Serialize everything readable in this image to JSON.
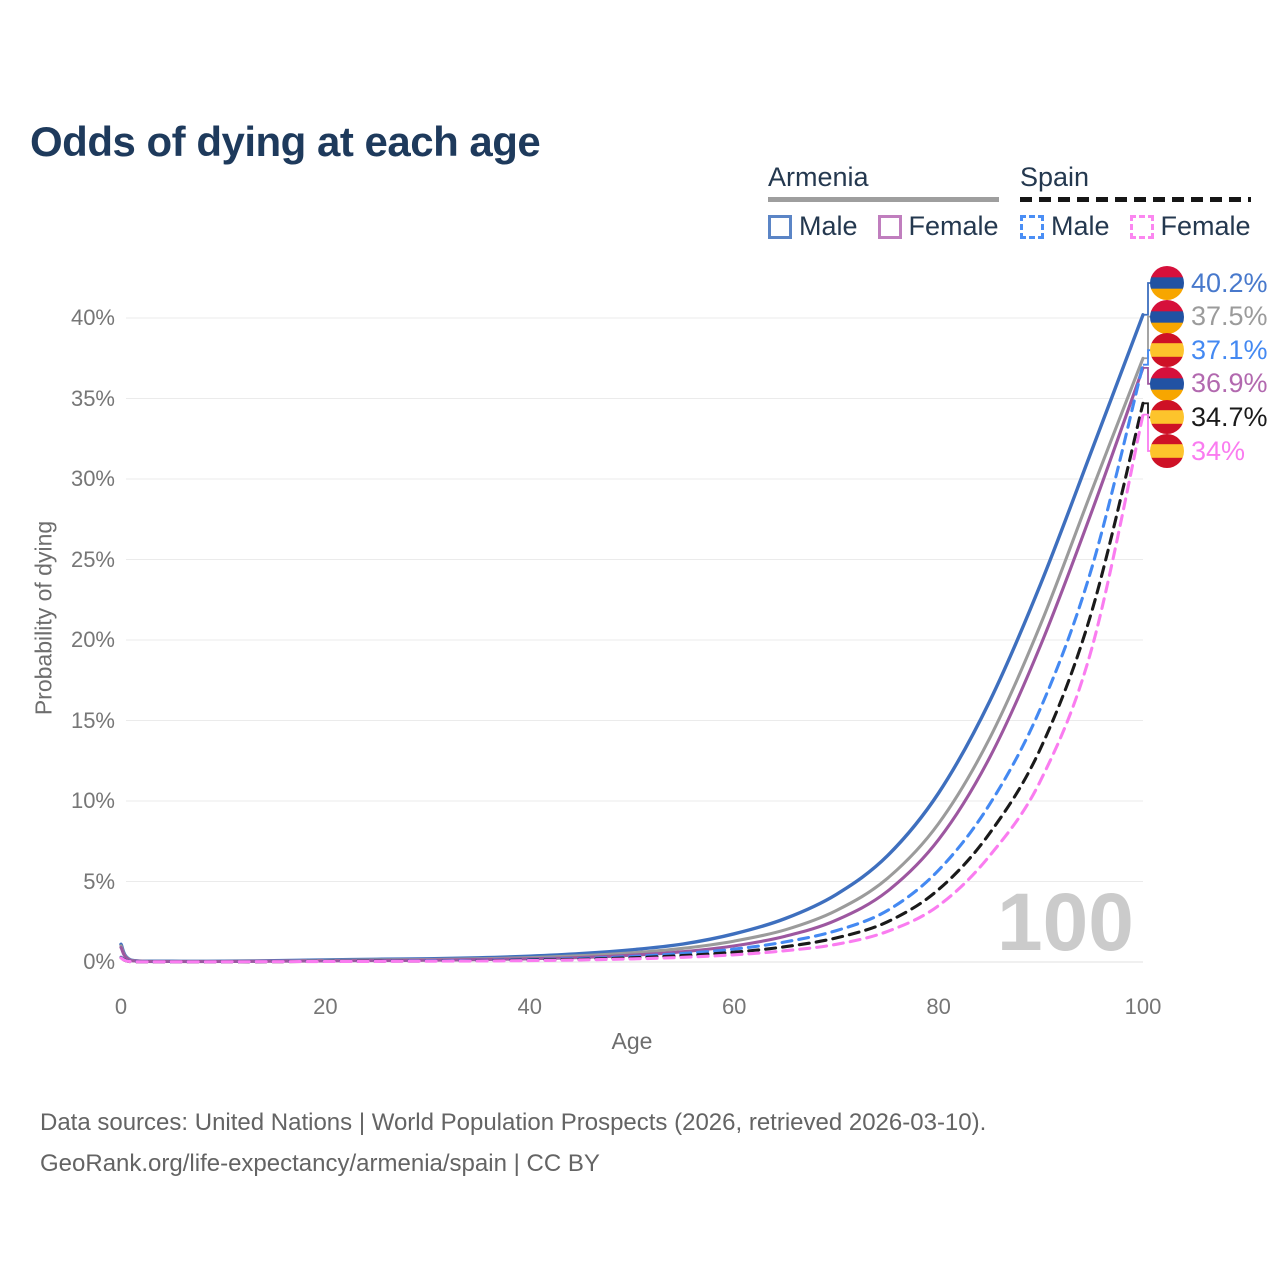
{
  "title": "Odds of dying at each age",
  "watermark": "100",
  "legend": {
    "groups": [
      {
        "name": "Armenia",
        "line_style": "solid",
        "underline_color": "#9E9E9E",
        "items": [
          {
            "label": "Male",
            "color": "#3E6FBE"
          },
          {
            "label": "Female",
            "color": "#9D57A0"
          }
        ]
      },
      {
        "name": "Spain",
        "line_style": "dashed",
        "underline_color": "#161616",
        "items": [
          {
            "label": "Male",
            "color": "#4A8EF5"
          },
          {
            "label": "Female",
            "color": "#FB7DF0"
          }
        ]
      }
    ]
  },
  "flags": {
    "armenia": {
      "colors": [
        "#D6103B",
        "#2152A3",
        "#F7A600"
      ],
      "fractions": [
        0.3333,
        0.3334,
        0.3333
      ]
    },
    "spain": {
      "colors": [
        "#CE1126",
        "#FDC42C",
        "#CE1126"
      ],
      "fractions": [
        0.3,
        0.4,
        0.3
      ]
    }
  },
  "footer": {
    "line1": "Data sources: United Nations | World Population Prospects (2026, retrieved 2026-03-10).",
    "line2": "GeoRank.org/life-expectancy/armenia/spain | CC BY"
  },
  "chart_data": {
    "type": "line",
    "title": "Odds of dying at each age",
    "xlabel": "Age",
    "ylabel": "Probability of dying",
    "xlim": [
      0,
      100
    ],
    "ylim": [
      0,
      42
    ],
    "grid": true,
    "legend_position": "top-right",
    "x_ticks": [
      0,
      20,
      40,
      60,
      80,
      100
    ],
    "y_ticks": [
      "0%",
      "5%",
      "10%",
      "15%",
      "20%",
      "25%",
      "30%",
      "35%",
      "40%"
    ],
    "y_tick_values": [
      0,
      5,
      10,
      15,
      20,
      25,
      30,
      35,
      40
    ],
    "x": [
      0,
      1,
      5,
      10,
      15,
      20,
      25,
      30,
      35,
      40,
      45,
      50,
      55,
      60,
      65,
      70,
      75,
      80,
      85,
      90,
      95,
      100
    ],
    "series": [
      {
        "name": "Armenia Male",
        "country": "Armenia",
        "sex": "male",
        "flag": "armenia",
        "color": "#3E6FBE",
        "dashed": false,
        "width": 3.4,
        "end_label": "40.2%",
        "end_label_color": "#4879CC",
        "label_row": 0,
        "values": [
          1.1,
          0.12,
          0.05,
          0.05,
          0.08,
          0.13,
          0.17,
          0.2,
          0.26,
          0.36,
          0.52,
          0.76,
          1.12,
          1.75,
          2.7,
          4.2,
          6.6,
          10.5,
          16.2,
          23.5,
          31.8,
          40.2
        ]
      },
      {
        "name": "Armenia Both sexes",
        "country": "Armenia",
        "sex": "both",
        "flag": "armenia",
        "color": "#9B9B9B",
        "dashed": false,
        "width": 3.1,
        "end_label": "37.5%",
        "end_label_color": "#9B9B9B",
        "label_row": 1,
        "values": [
          1.0,
          0.1,
          0.04,
          0.04,
          0.06,
          0.1,
          0.13,
          0.15,
          0.2,
          0.27,
          0.39,
          0.57,
          0.85,
          1.3,
          2.0,
          3.2,
          5.2,
          8.6,
          13.9,
          21.0,
          29.3,
          37.5
        ]
      },
      {
        "name": "Armenia Female",
        "country": "Armenia",
        "sex": "female",
        "flag": "armenia",
        "color": "#9D57A0",
        "dashed": false,
        "width": 3.1,
        "end_label": "36.9%",
        "end_label_color": "#B269AF",
        "label_row": 3,
        "values": [
          0.9,
          0.09,
          0.03,
          0.03,
          0.05,
          0.07,
          0.09,
          0.11,
          0.15,
          0.2,
          0.28,
          0.42,
          0.64,
          1.0,
          1.6,
          2.6,
          4.4,
          7.6,
          12.7,
          19.7,
          28.0,
          36.9
        ]
      },
      {
        "name": "Spain Male",
        "country": "Spain",
        "sex": "male",
        "flag": "spain",
        "color": "#4489F2",
        "dashed": true,
        "width": 3.1,
        "end_label": "37.1%",
        "end_label_color": "#4489F2",
        "label_row": 2,
        "values": [
          0.3,
          0.03,
          0.01,
          0.01,
          0.03,
          0.05,
          0.06,
          0.08,
          0.1,
          0.15,
          0.22,
          0.34,
          0.53,
          0.8,
          1.25,
          1.95,
          3.2,
          5.7,
          9.8,
          15.8,
          24.5,
          37.1
        ]
      },
      {
        "name": "Spain Both sexes",
        "country": "Spain",
        "sex": "both",
        "flag": "spain",
        "color": "#1A1A1A",
        "dashed": true,
        "width": 3.1,
        "end_label": "34.7%",
        "end_label_color": "#1A1A1A",
        "label_row": 4,
        "values": [
          0.27,
          0.02,
          0.01,
          0.01,
          0.02,
          0.04,
          0.05,
          0.06,
          0.08,
          0.12,
          0.17,
          0.26,
          0.4,
          0.61,
          0.95,
          1.5,
          2.5,
          4.5,
          8.0,
          13.3,
          21.8,
          34.7
        ]
      },
      {
        "name": "Spain Female",
        "country": "Spain",
        "sex": "female",
        "flag": "spain",
        "color": "#FA7CF0",
        "dashed": true,
        "width": 3.1,
        "end_label": "34%",
        "end_label_color": "#FA7CF0",
        "label_row": 5,
        "values": [
          0.25,
          0.02,
          0.01,
          0.01,
          0.02,
          0.03,
          0.04,
          0.05,
          0.06,
          0.09,
          0.13,
          0.19,
          0.29,
          0.45,
          0.7,
          1.1,
          1.9,
          3.5,
          6.6,
          11.3,
          19.5,
          34.0
        ]
      }
    ]
  }
}
